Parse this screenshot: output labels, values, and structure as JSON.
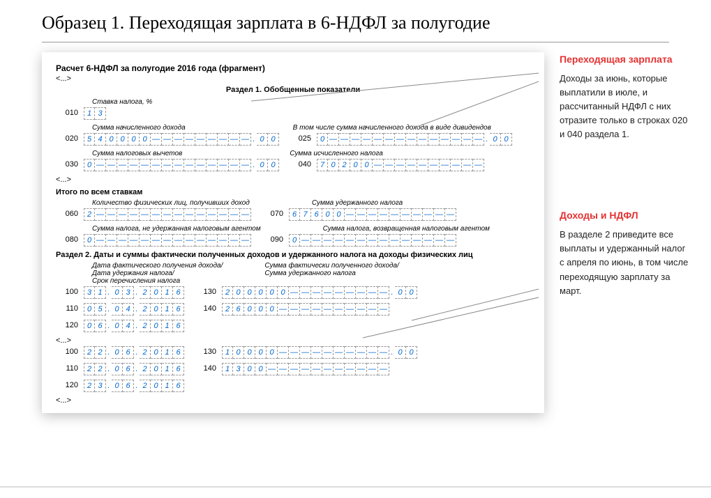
{
  "page_title": "Образец 1. Переходящая зарплата в 6-НДФЛ за полугодие",
  "form_title": "Расчет 6-НДФЛ за полугодие 2016 года (фрагмент)",
  "ellipsis": "<...>",
  "section1_title": "Раздел 1. Обобщенные показатели",
  "labels": {
    "l010": "Ставка налога, %",
    "l020": "Сумма начисленного дохода",
    "l025": "В том числе сумма начисленного дохода в виде дивидендов",
    "l030": "Сумма налоговых вычетов",
    "l040": "Сумма исчисленного налога",
    "all_rates": "Итого по всем ставкам",
    "l060": "Количество физических лиц, получивших доход",
    "l070": "Сумма удержанного налога",
    "l080": "Сумма налога, не удержанная налоговым агентом",
    "l090": "Сумма налога, возвращенная налоговым агентом"
  },
  "section2_title": "Раздел 2. Даты и суммы фактически полученных доходов и удержанного налога на доходы физических лиц",
  "s2_labels_left": "Дата фактического получения дохода/\nДата удержания налога/\nСрок перечисления налога",
  "s2_labels_right": "Сумма фактически полученного дохода/\nСумма удержанного налога",
  "codes": {
    "c010": "010",
    "c020": "020",
    "c025": "025",
    "c030": "030",
    "c040": "040",
    "c060": "060",
    "c070": "070",
    "c080": "080",
    "c090": "090",
    "c100": "100",
    "c110": "110",
    "c120": "120",
    "c130": "130",
    "c140": "140"
  },
  "form": {
    "r010": [
      "1",
      "3"
    ],
    "r020": {
      "digits": [
        "5",
        "4",
        "0",
        "0",
        "0",
        "0"
      ],
      "total_int": 15,
      "dec": [
        "0",
        "0"
      ]
    },
    "r025": {
      "digits": [
        "0"
      ],
      "total_int": 15,
      "dec": [
        "0",
        "0"
      ]
    },
    "r030": {
      "digits": [
        "0"
      ],
      "total_int": 15,
      "dec": [
        "0",
        "0"
      ]
    },
    "r040": {
      "digits": [
        "7",
        "0",
        "2",
        "0",
        "0"
      ],
      "total_int": 15
    },
    "r060": {
      "digits": [
        "2"
      ],
      "total_int": 15
    },
    "r070": {
      "digits": [
        "6",
        "7",
        "6",
        "0",
        "0"
      ],
      "total_int": 15
    },
    "r080": {
      "digits": [
        "0"
      ],
      "total_int": 15
    },
    "r090": {
      "digits": [
        "0"
      ],
      "total_int": 15
    },
    "block1": {
      "r100": [
        "3",
        "1",
        ".",
        "0",
        "3",
        ".",
        "2",
        "0",
        "1",
        "6"
      ],
      "r110": [
        "0",
        "5",
        ".",
        "0",
        "4",
        ".",
        "2",
        "0",
        "1",
        "6"
      ],
      "r120": [
        "0",
        "6",
        ".",
        "0",
        "4",
        ".",
        "2",
        "0",
        "1",
        "6"
      ],
      "r130": {
        "digits": [
          "2",
          "0",
          "0",
          "0",
          "0",
          "0"
        ],
        "total_int": 15,
        "dec": [
          "0",
          "0"
        ]
      },
      "r140": {
        "digits": [
          "2",
          "6",
          "0",
          "0",
          "0"
        ],
        "total_int": 15
      }
    },
    "block2": {
      "r100": [
        "2",
        "2",
        ".",
        "0",
        "6",
        ".",
        "2",
        "0",
        "1",
        "6"
      ],
      "r110": [
        "2",
        "2",
        ".",
        "0",
        "6",
        ".",
        "2",
        "0",
        "1",
        "6"
      ],
      "r120": [
        "2",
        "3",
        ".",
        "0",
        "6",
        ".",
        "2",
        "0",
        "1",
        "6"
      ],
      "r130": {
        "digits": [
          "1",
          "0",
          "0",
          "0",
          "0"
        ],
        "total_int": 15,
        "dec": [
          "0",
          "0"
        ]
      },
      "r140": {
        "digits": [
          "1",
          "3",
          "0",
          "0"
        ],
        "total_int": 15
      }
    }
  },
  "side": {
    "b1_title": "Переходящая зарплата",
    "b1_text": "Доходы за июнь, которые выплатили в июле, и рассчитанный НДФЛ с них отразите только в строках 020 и 040 раздела 1.",
    "b2_title": "Доходы и НДФЛ",
    "b2_text": "В разделе 2 приведите все выплаты и удержанный налог с апреля по июнь, в том числе переходящую зарплату за март."
  },
  "colors": {
    "accent_red": "#e63232",
    "cell_text": "#0066cc",
    "border": "#999999"
  }
}
